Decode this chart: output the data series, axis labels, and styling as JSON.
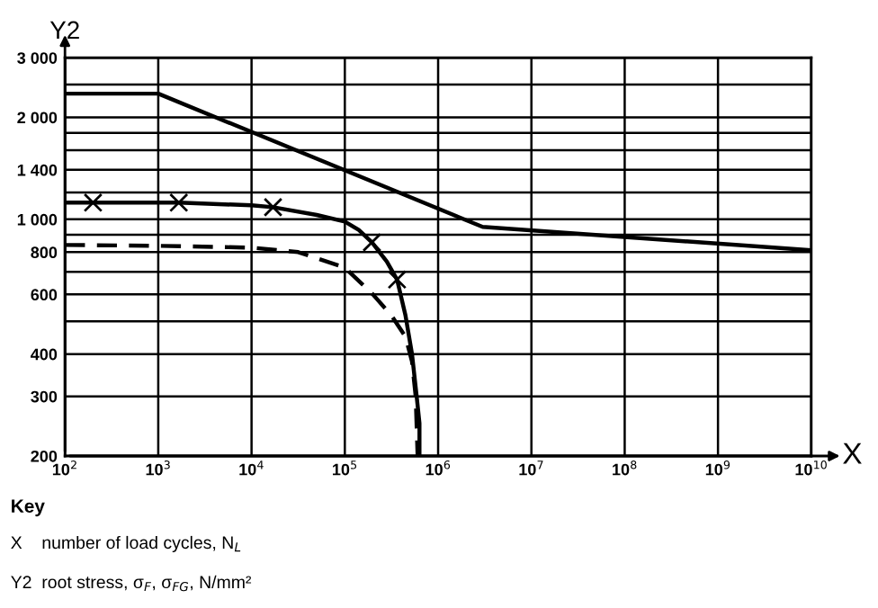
{
  "chart_data": {
    "type": "line",
    "xlabel": "X",
    "ylabel": "Y2",
    "log": "xy",
    "grid": true,
    "xlim": [
      100,
      10000000000
    ],
    "ylim": [
      200,
      3000
    ],
    "xticks": [
      {
        "value": 100,
        "label": "10$^{2}$"
      },
      {
        "value": 1000,
        "label": "10$^{3}$"
      },
      {
        "value": 10000,
        "label": "10$^{4}$"
      },
      {
        "value": 100000,
        "label": "10$^{5}$"
      },
      {
        "value": 1000000,
        "label": "10$^{6}$"
      },
      {
        "value": 10000000,
        "label": "10$^{7}$"
      },
      {
        "value": 100000000,
        "label": "10$^{8}$"
      },
      {
        "value": 1000000000,
        "label": "10$^{9}$"
      },
      {
        "value": 10000000000,
        "label": "10$^{10}$"
      }
    ],
    "yticks": [
      200,
      300,
      400,
      {
        "value": 500,
        "label": null
      },
      600,
      {
        "value": 700,
        "label": null
      },
      800,
      {
        "value": 900,
        "label": null
      },
      {
        "value": 1000,
        "label": "1 000"
      },
      {
        "value": 1200,
        "label": null
      },
      {
        "value": 1400,
        "label": "1 400"
      },
      {
        "value": 1600,
        "label": null
      },
      {
        "value": 1800,
        "label": null
      },
      {
        "value": 2000,
        "label": "2 000"
      },
      {
        "value": 2500,
        "label": null
      },
      {
        "value": 3000,
        "label": "3 000"
      }
    ],
    "series": [
      {
        "color": "#000000",
        "line_style": "solid",
        "x": [
          100,
          1000,
          3000000,
          10000000000
        ],
        "values": [
          2350,
          2350,
          950,
          810
        ]
      },
      {
        "color": "#000000",
        "line_style": "solid",
        "x": [
          100,
          200,
          1000,
          1660,
          10000,
          17000,
          50000,
          100000,
          141000,
          195000,
          282000,
          363000,
          447000,
          525000,
          589000,
          631000,
          631000
        ],
        "values": [
          1120,
          1120,
          1120,
          1120,
          1100,
          1086,
          1030,
          985,
          930,
          855,
          750,
          664,
          520,
          400,
          300,
          250,
          200
        ]
      },
      {
        "color": "#000000",
        "line_style": "dashed",
        "x": [
          100,
          1000,
          10000,
          31600,
          100000,
          200000,
          316000,
          447000,
          525000,
          575000,
          603000
        ],
        "values": [
          840,
          835,
          825,
          800,
          720,
          600,
          520,
          450,
          380,
          300,
          200
        ]
      },
      {
        "type": "scatter",
        "color": "#000000",
        "marker": "cross",
        "x": [
          200,
          1660,
          17000,
          195000,
          363000
        ],
        "values": [
          1120,
          1120,
          1086,
          855,
          664
        ]
      }
    ],
    "annotations": [
      "Key",
      "X    number of load cycles, N$_{L}$",
      "Y2  root stress, σ$_{F}$, σ$_{FG}$, N/mm²"
    ]
  }
}
